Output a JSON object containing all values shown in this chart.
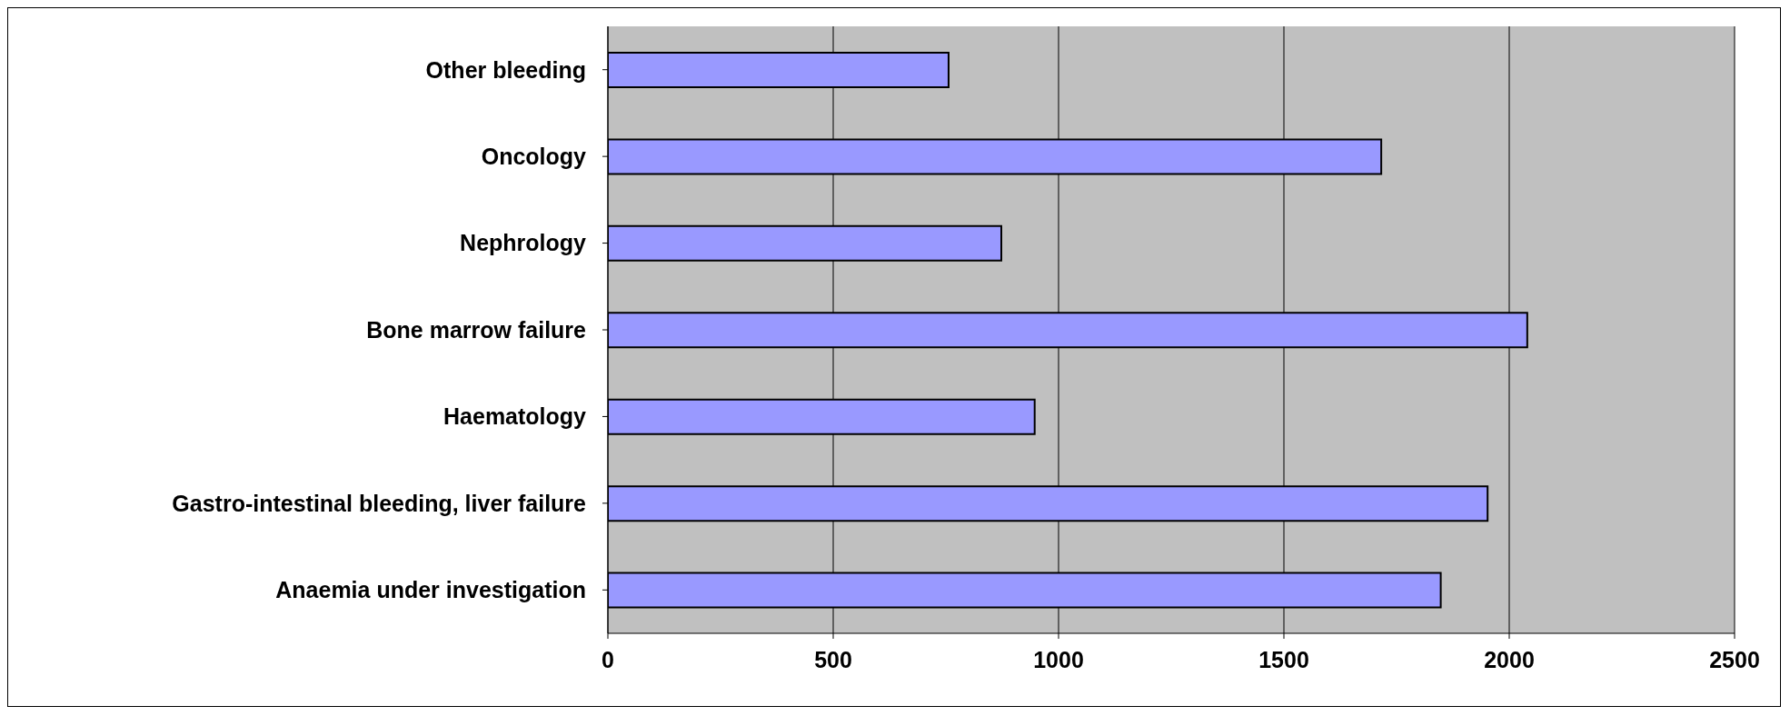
{
  "chart_data": {
    "type": "bar",
    "orientation": "horizontal",
    "categories": [
      "Other bleeding",
      "Oncology",
      "Nephrology",
      "Bone marrow failure",
      "Haematology",
      "Gastro-intestinal bleeding, liver failure",
      "Anaemia under investigation"
    ],
    "values": [
      756,
      1716,
      873,
      2040,
      947,
      1952,
      1848
    ],
    "color": "#9999ff",
    "xlim": [
      0,
      2500
    ],
    "xticks": [
      0,
      500,
      1000,
      1500,
      2000,
      2500
    ],
    "grid": "x"
  }
}
